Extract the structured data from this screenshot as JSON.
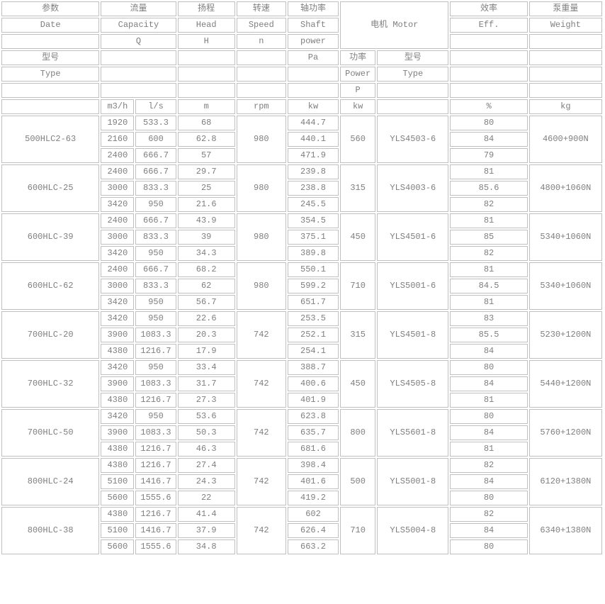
{
  "table": {
    "header": {
      "r1": {
        "param": "参数",
        "capacity": "流量",
        "head": "扬程",
        "speed": "转速",
        "shaft": "轴功率",
        "motor": "电机 Motor",
        "eff": "效率",
        "weight": "泵重量"
      },
      "r2": {
        "param": "Date",
        "capacity": "Capacity",
        "head": "Head",
        "speed": "Speed",
        "shaft": "Shaft",
        "eff": "Eff.",
        "weight": "Weight"
      },
      "r3": {
        "capacity": "Q",
        "head": "H",
        "speed": "n",
        "shaft": "power"
      },
      "r4": {
        "param": "型号",
        "shaft": "Pa",
        "motor_power": "功率",
        "motor_type": "型号"
      },
      "r5": {
        "param": "Type",
        "motor_power": "Power",
        "motor_type": "Type"
      },
      "r6": {
        "motor_power": "P"
      },
      "r7": {
        "capacity_u1": "m3/h",
        "capacity_u2": "l/s",
        "head": "m",
        "speed": "rpm",
        "shaft": "kw",
        "motor_power": "kw",
        "eff": "%",
        "weight": "kg"
      }
    },
    "pumps": [
      {
        "model": "500HLC2-63",
        "speed": "980",
        "motor_power": "560",
        "motor_type": "YLS4503-6",
        "weight": "4600+900N",
        "rows": [
          [
            "1920",
            "533.3",
            "68",
            "444.7",
            "80"
          ],
          [
            "2160",
            "600",
            "62.8",
            "440.1",
            "84"
          ],
          [
            "2400",
            "666.7",
            "57",
            "471.9",
            "79"
          ]
        ]
      },
      {
        "model": "600HLC-25",
        "speed": "980",
        "motor_power": "315",
        "motor_type": "YLS4003-6",
        "weight": "4800+1060N",
        "rows": [
          [
            "2400",
            "666.7",
            "29.7",
            "239.8",
            "81"
          ],
          [
            "3000",
            "833.3",
            "25",
            "238.8",
            "85.6"
          ],
          [
            "3420",
            "950",
            "21.6",
            "245.5",
            "82"
          ]
        ]
      },
      {
        "model": "600HLC-39",
        "speed": "980",
        "motor_power": "450",
        "motor_type": "YLS4501-6",
        "weight": "5340+1060N",
        "rows": [
          [
            "2400",
            "666.7",
            "43.9",
            "354.5",
            "81"
          ],
          [
            "3000",
            "833.3",
            "39",
            "375.1",
            "85"
          ],
          [
            "3420",
            "950",
            "34.3",
            "389.8",
            "82"
          ]
        ]
      },
      {
        "model": "600HLC-62",
        "speed": "980",
        "motor_power": "710",
        "motor_type": "YLS5001-6",
        "weight": "5340+1060N",
        "rows": [
          [
            "2400",
            "666.7",
            "68.2",
            "550.1",
            "81"
          ],
          [
            "3000",
            "833.3",
            "62",
            "599.2",
            "84.5"
          ],
          [
            "3420",
            "950",
            "56.7",
            "651.7",
            "81"
          ]
        ]
      },
      {
        "model": "700HLC-20",
        "speed": "742",
        "motor_power": "315",
        "motor_type": "YLS4501-8",
        "weight": "5230+1200N",
        "rows": [
          [
            "3420",
            "950",
            "22.6",
            "253.5",
            "83"
          ],
          [
            "3900",
            "1083.3",
            "20.3",
            "252.1",
            "85.5"
          ],
          [
            "4380",
            "1216.7",
            "17.9",
            "254.1",
            "84"
          ]
        ]
      },
      {
        "model": "700HLC-32",
        "speed": "742",
        "motor_power": "450",
        "motor_type": "YLS4505-8",
        "weight": "5440+1200N",
        "rows": [
          [
            "3420",
            "950",
            "33.4",
            "388.7",
            "80"
          ],
          [
            "3900",
            "1083.3",
            "31.7",
            "400.6",
            "84"
          ],
          [
            "4380",
            "1216.7",
            "27.3",
            "401.9",
            "81"
          ]
        ]
      },
      {
        "model": "700HLC-50",
        "speed": "742",
        "motor_power": "800",
        "motor_type": "YLS5601-8",
        "weight": "5760+1200N",
        "rows": [
          [
            "3420",
            "950",
            "53.6",
            "623.8",
            "80"
          ],
          [
            "3900",
            "1083.3",
            "50.3",
            "635.7",
            "84"
          ],
          [
            "4380",
            "1216.7",
            "46.3",
            "681.6",
            "81"
          ]
        ]
      },
      {
        "model": "800HLC-24",
        "speed": "742",
        "motor_power": "500",
        "motor_type": "YLS5001-8",
        "weight": "6120+1380N",
        "rows": [
          [
            "4380",
            "1216.7",
            "27.4",
            "398.4",
            "82"
          ],
          [
            "5100",
            "1416.7",
            "24.3",
            "401.6",
            "84"
          ],
          [
            "5600",
            "1555.6",
            "22",
            "419.2",
            "80"
          ]
        ]
      },
      {
        "model": "800HLC-38",
        "speed": "742",
        "motor_power": "710",
        "motor_type": "YLS5004-8",
        "weight": "6340+1380N",
        "rows": [
          [
            "4380",
            "1216.7",
            "41.4",
            "602",
            "82"
          ],
          [
            "5100",
            "1416.7",
            "37.9",
            "626.4",
            "84"
          ],
          [
            "5600",
            "1555.6",
            "34.8",
            "663.2",
            "80"
          ]
        ]
      }
    ]
  }
}
